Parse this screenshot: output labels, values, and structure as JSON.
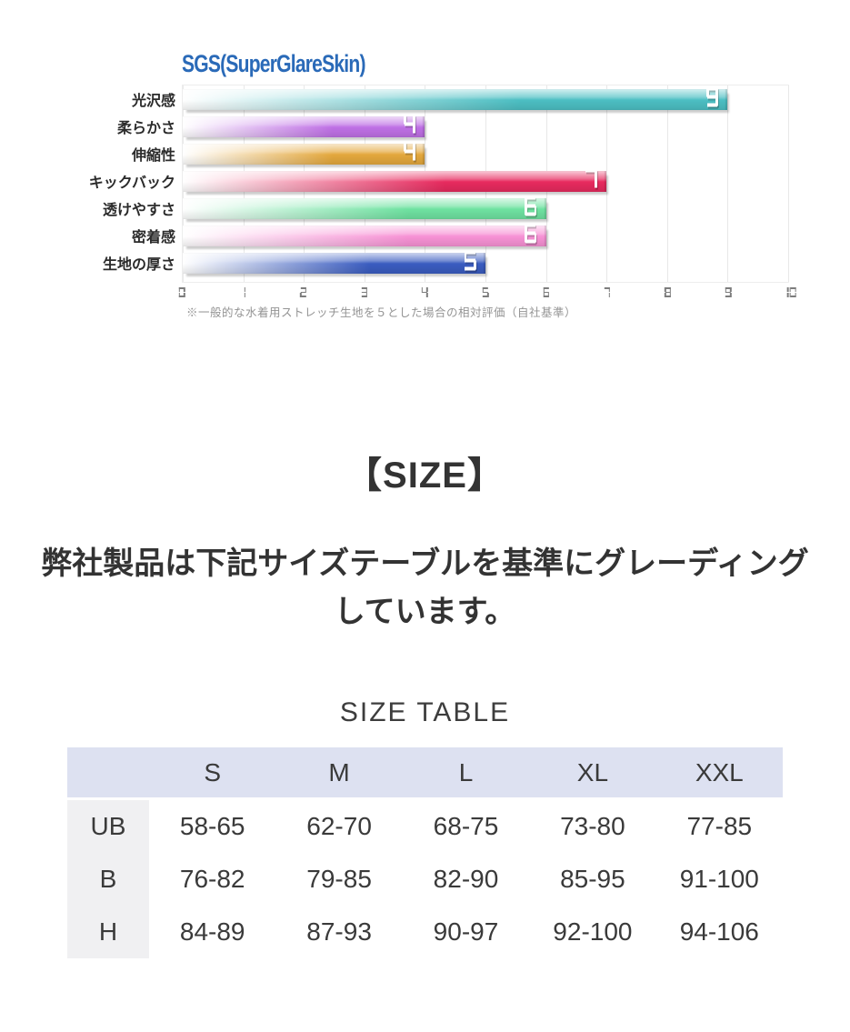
{
  "chart_data": {
    "type": "bar",
    "orientation": "horizontal",
    "title": "SGS(SuperGlareSkin)",
    "title_color": "#2a6ab8",
    "categories": [
      "光沢感",
      "柔らかさ",
      "伸縮性",
      "キックバック",
      "透けやすさ",
      "密着感",
      "生地の厚さ"
    ],
    "values": [
      9,
      4,
      4,
      7,
      6,
      6,
      5
    ],
    "colors": [
      "#4cbfc3",
      "#bf70e5",
      "#e4a83d",
      "#e72a5e",
      "#6fe2a1",
      "#f792d5",
      "#3a5cc0"
    ],
    "xlim": [
      0,
      10
    ],
    "xticks": [
      0,
      1,
      2,
      3,
      4,
      5,
      6,
      7,
      8,
      9,
      10
    ],
    "grid": true,
    "value_labels": "inside-end",
    "value_label_style": "seven-segment-white",
    "footnote": "※一般的な水着用ストレッチ生地を５とした場合の相対評価（自社基準）"
  },
  "size_section": {
    "heading": "【SIZE】",
    "description": "弊社製品は下記サイズテーブルを基準にグレーディングしています。",
    "table_title": "SIZE TABLE",
    "table": {
      "columns": [
        "S",
        "M",
        "L",
        "XL",
        "XXL"
      ],
      "rows": [
        {
          "label": "UB",
          "values": [
            "58-65",
            "62-70",
            "68-75",
            "73-80",
            "77-85"
          ]
        },
        {
          "label": "B",
          "values": [
            "76-82",
            "79-85",
            "82-90",
            "85-95",
            "91-100"
          ]
        },
        {
          "label": "H",
          "values": [
            "84-89",
            "87-93",
            "90-97",
            "92-100",
            "94-106"
          ]
        }
      ]
    },
    "colors": {
      "header_bg": "#dde1f1",
      "label_bg": "#f0f0f2"
    }
  }
}
